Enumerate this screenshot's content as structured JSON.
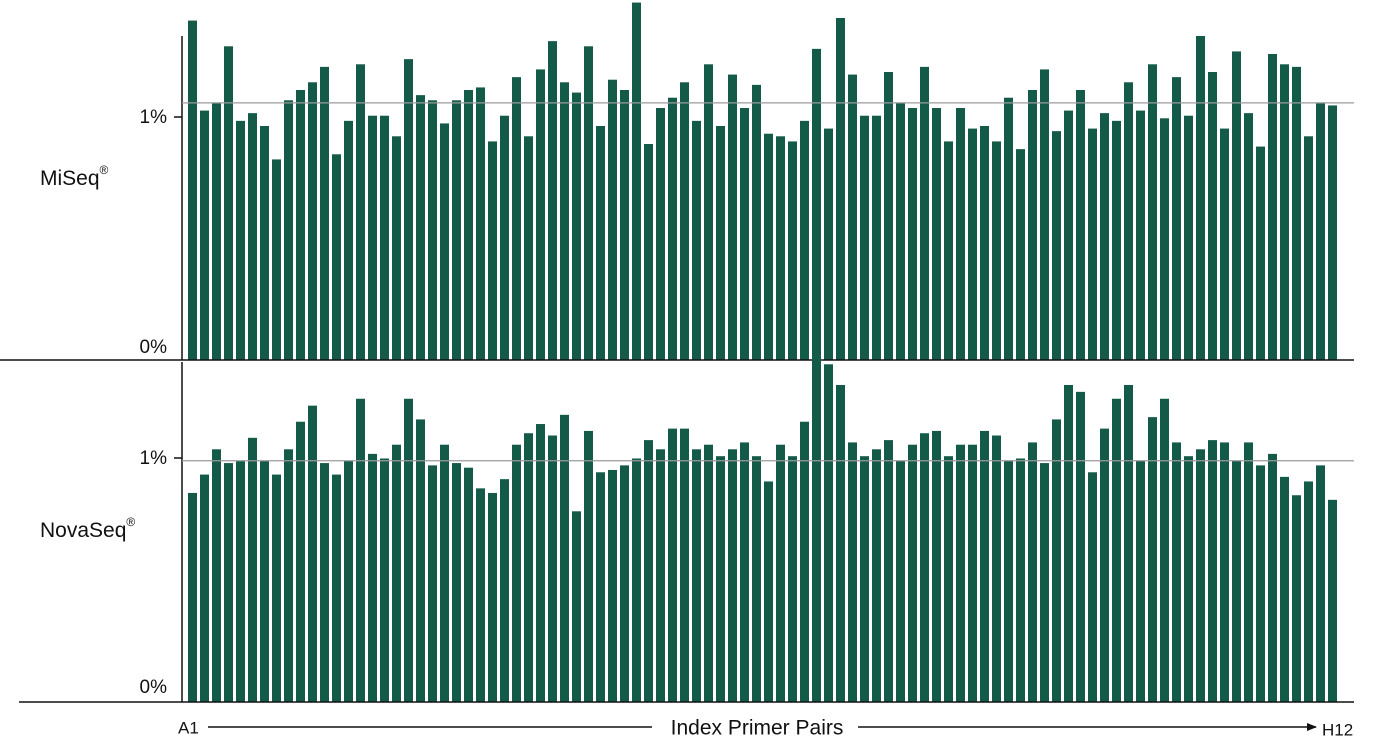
{
  "chart_data": [
    {
      "type": "bar",
      "panel": "MiSeq",
      "panel_label": "MiSeq",
      "panel_label_mark": "®",
      "y_ticks": [
        "0%",
        "1%"
      ],
      "reference_line_value": 1.0,
      "ylim": [
        0,
        1.4
      ],
      "bar_color": "#135a48",
      "values": [
        1.32,
        0.97,
        1.0,
        1.22,
        0.93,
        0.96,
        0.91,
        0.78,
        1.01,
        1.05,
        1.08,
        1.14,
        0.8,
        0.93,
        1.15,
        0.95,
        0.95,
        0.87,
        1.17,
        1.03,
        1.01,
        0.92,
        1.01,
        1.05,
        1.06,
        0.85,
        0.95,
        1.1,
        0.87,
        1.13,
        1.24,
        1.08,
        1.04,
        1.22,
        0.91,
        1.09,
        1.05,
        1.39,
        0.84,
        0.98,
        1.02,
        1.08,
        0.93,
        1.15,
        0.91,
        1.11,
        0.98,
        1.07,
        0.88,
        0.87,
        0.85,
        0.93,
        1.21,
        0.9,
        1.33,
        1.11,
        0.95,
        0.95,
        1.12,
        1.0,
        0.98,
        1.14,
        0.98,
        0.85,
        0.98,
        0.9,
        0.91,
        0.85,
        1.02,
        0.82,
        1.05,
        1.13,
        0.89,
        0.97,
        1.05,
        0.9,
        0.96,
        0.93,
        1.08,
        0.97,
        1.15,
        0.94,
        1.1,
        0.95,
        1.26,
        1.12,
        0.9,
        1.2,
        0.96,
        0.83,
        1.19,
        1.15,
        1.14,
        0.87,
        1.0,
        0.99
      ]
    },
    {
      "type": "bar",
      "panel": "NovaSeq",
      "panel_label": "NovaSeq",
      "panel_label_mark": "®",
      "y_ticks": [
        "0%",
        "1%"
      ],
      "reference_line_value": 1.05,
      "ylim": [
        0,
        1.48
      ],
      "bar_color": "#135a48",
      "values": [
        0.91,
        0.99,
        1.1,
        1.04,
        1.05,
        1.15,
        1.05,
        0.99,
        1.1,
        1.22,
        1.29,
        1.04,
        0.99,
        1.05,
        1.32,
        1.08,
        1.06,
        1.12,
        1.32,
        1.23,
        1.03,
        1.12,
        1.04,
        1.02,
        0.93,
        0.91,
        0.97,
        1.12,
        1.17,
        1.21,
        1.16,
        1.25,
        0.83,
        1.18,
        1.0,
        1.01,
        1.03,
        1.06,
        1.14,
        1.1,
        1.19,
        1.19,
        1.1,
        1.12,
        1.07,
        1.1,
        1.13,
        1.07,
        0.96,
        1.12,
        1.07,
        1.22,
        1.52,
        1.47,
        1.38,
        1.13,
        1.07,
        1.1,
        1.14,
        1.05,
        1.12,
        1.17,
        1.18,
        1.07,
        1.12,
        1.12,
        1.18,
        1.16,
        1.05,
        1.06,
        1.13,
        1.04,
        1.23,
        1.38,
        1.35,
        1.0,
        1.19,
        1.32,
        1.38,
        1.05,
        1.24,
        1.32,
        1.13,
        1.07,
        1.1,
        1.14,
        1.13,
        1.05,
        1.13,
        1.03,
        1.08,
        0.98,
        0.9,
        0.96,
        1.03,
        0.88
      ]
    }
  ],
  "x_axis": {
    "start_label": "A1",
    "title": "Index Primer Pairs",
    "end_label": "H12"
  }
}
